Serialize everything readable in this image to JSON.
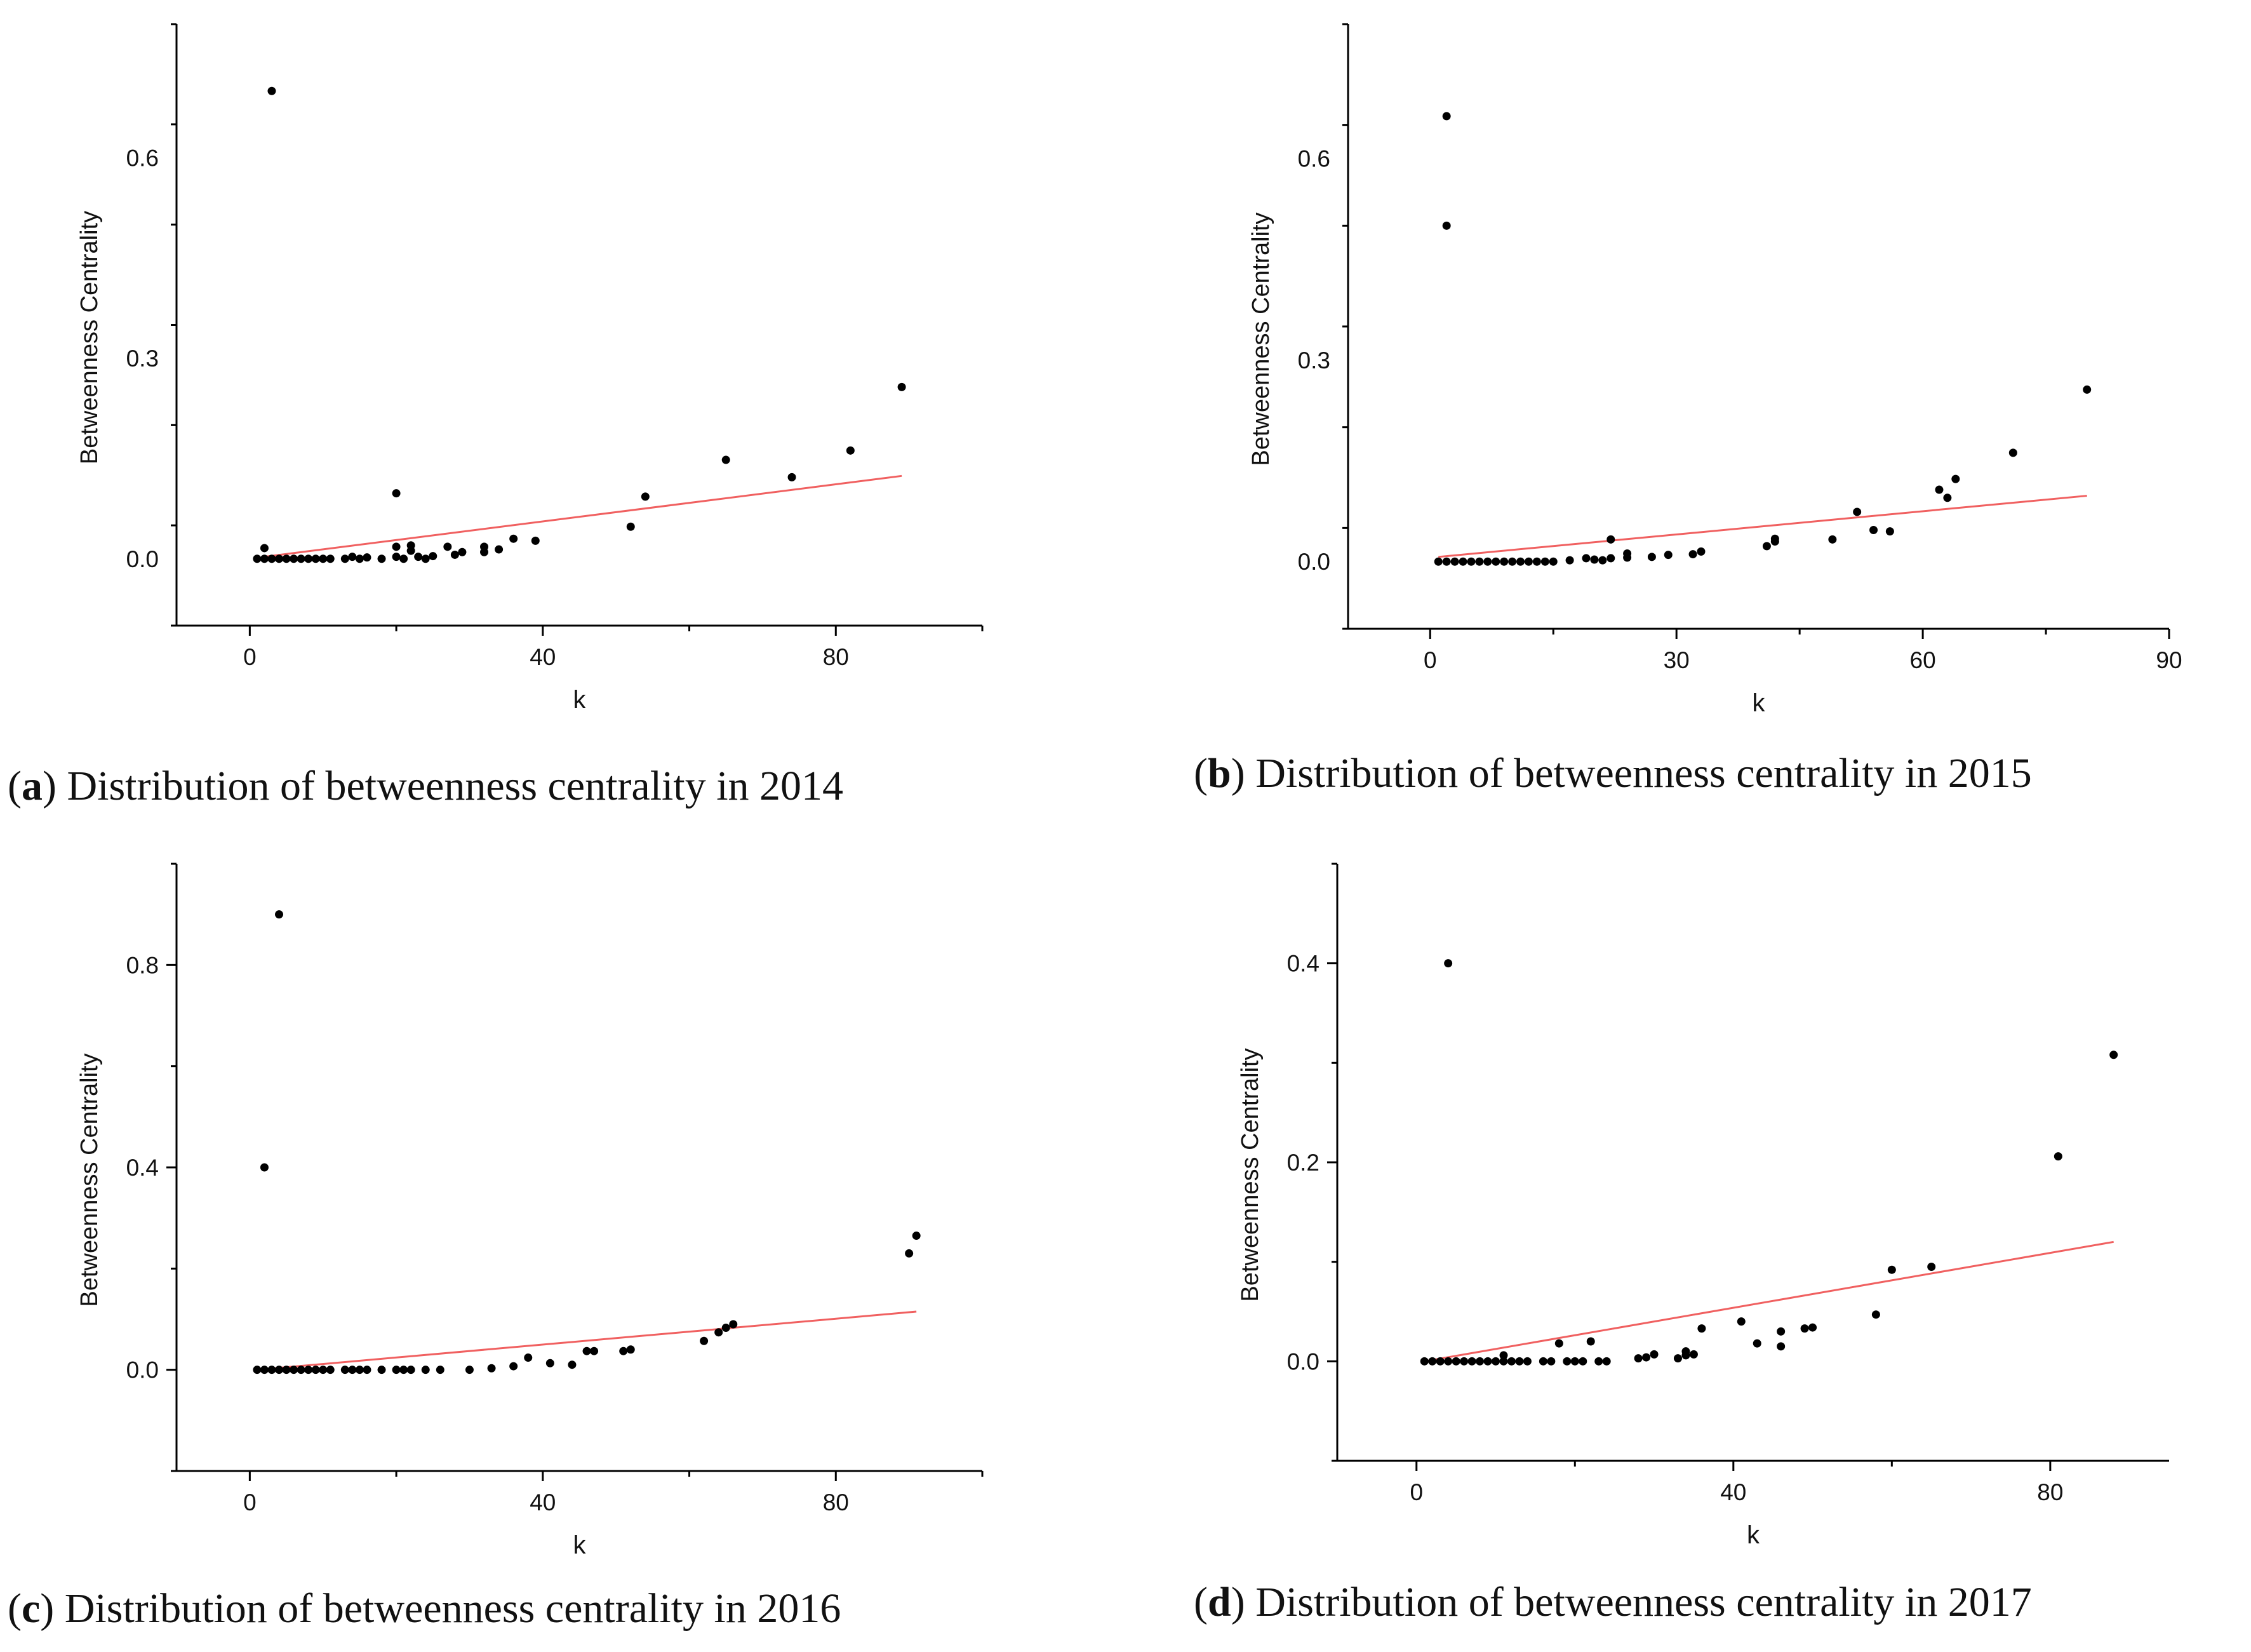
{
  "chart_data": [
    {
      "type": "scatter",
      "caption_letter": "a",
      "caption_text": "Distribution of betweenness centrality in 2014",
      "xlabel": "k",
      "ylabel": "Betweenness Centrality",
      "xlim": [
        -10,
        100
      ],
      "ylim": [
        -0.1,
        0.8
      ],
      "xticks": [
        0,
        40,
        80
      ],
      "yticks": [
        0.0,
        0.3,
        0.6
      ],
      "xtick_labels": [
        "0",
        "40",
        "80"
      ],
      "ytick_labels": [
        "0.0",
        "0.3",
        "0.6"
      ],
      "grid": false,
      "point_color": "#000000",
      "fit_color": "#f06060",
      "fit_line": {
        "x": [
          2,
          89
        ],
        "y": [
          0.003,
          0.124
        ]
      },
      "points": [
        [
          1,
          0
        ],
        [
          2,
          0
        ],
        [
          2,
          0.016
        ],
        [
          3,
          0
        ],
        [
          3,
          0.7
        ],
        [
          4,
          0
        ],
        [
          5,
          0
        ],
        [
          6,
          0
        ],
        [
          7,
          0
        ],
        [
          8,
          0
        ],
        [
          9,
          0
        ],
        [
          10,
          0
        ],
        [
          11,
          0
        ],
        [
          13,
          0
        ],
        [
          14,
          0.003
        ],
        [
          15,
          0
        ],
        [
          16,
          0.002
        ],
        [
          18,
          0
        ],
        [
          20,
          0.003
        ],
        [
          20,
          0.018
        ],
        [
          20,
          0.098
        ],
        [
          21,
          0
        ],
        [
          22,
          0.012
        ],
        [
          22,
          0.02
        ],
        [
          23,
          0.003
        ],
        [
          24,
          0
        ],
        [
          25,
          0.004
        ],
        [
          27,
          0.018
        ],
        [
          28,
          0.006
        ],
        [
          29,
          0.01
        ],
        [
          32,
          0.01
        ],
        [
          32,
          0.018
        ],
        [
          34,
          0.014
        ],
        [
          36,
          0.03
        ],
        [
          39,
          0.027
        ],
        [
          52,
          0.048
        ],
        [
          54,
          0.093
        ],
        [
          65,
          0.148
        ],
        [
          74,
          0.122
        ],
        [
          82,
          0.162
        ],
        [
          89,
          0.257
        ]
      ]
    },
    {
      "type": "scatter",
      "caption_letter": "b",
      "caption_text": "Distribution of betweenness centrality in 2015",
      "xlabel": "k",
      "ylabel": "Betweenness Centrality",
      "xlim": [
        -10,
        90
      ],
      "ylim": [
        -0.1,
        0.8
      ],
      "xticks": [
        0,
        30,
        60,
        90
      ],
      "yticks": [
        0.0,
        0.3,
        0.6
      ],
      "xtick_labels": [
        "0",
        "30",
        "60",
        "90"
      ],
      "ytick_labels": [
        "0.0",
        "0.3",
        "0.6"
      ],
      "grid": false,
      "point_color": "#000000",
      "fit_color": "#f06060",
      "fit_line": {
        "x": [
          1,
          80
        ],
        "y": [
          0.007,
          0.098
        ]
      },
      "points": [
        [
          1,
          0
        ],
        [
          2,
          0
        ],
        [
          2,
          0.663
        ],
        [
          2,
          0.5
        ],
        [
          3,
          0
        ],
        [
          4,
          0
        ],
        [
          5,
          0
        ],
        [
          6,
          0
        ],
        [
          7,
          0
        ],
        [
          8,
          0
        ],
        [
          9,
          0
        ],
        [
          10,
          0
        ],
        [
          11,
          0
        ],
        [
          12,
          0
        ],
        [
          13,
          0
        ],
        [
          14,
          0
        ],
        [
          15,
          0
        ],
        [
          17,
          0.002
        ],
        [
          19,
          0.005
        ],
        [
          20,
          0.003
        ],
        [
          21,
          0.002
        ],
        [
          22,
          0.033
        ],
        [
          22,
          0.005
        ],
        [
          24,
          0.006
        ],
        [
          24,
          0.012
        ],
        [
          27,
          0.007
        ],
        [
          29,
          0.01
        ],
        [
          32,
          0.011
        ],
        [
          33,
          0.015
        ],
        [
          41,
          0.023
        ],
        [
          42,
          0.03
        ],
        [
          42,
          0.034
        ],
        [
          49,
          0.033
        ],
        [
          52,
          0.074
        ],
        [
          54,
          0.047
        ],
        [
          56,
          0.045
        ],
        [
          62,
          0.107
        ],
        [
          63,
          0.095
        ],
        [
          64,
          0.123
        ],
        [
          71,
          0.162
        ],
        [
          80,
          0.256
        ]
      ]
    },
    {
      "type": "scatter",
      "caption_letter": "c",
      "caption_text": "Distribution of betweenness centrality in 2016",
      "xlabel": "k",
      "ylabel": "Betweenness Centrality",
      "xlim": [
        -10,
        100
      ],
      "ylim": [
        -0.2,
        1.0
      ],
      "xticks": [
        0,
        40,
        80
      ],
      "yticks": [
        0.0,
        0.4,
        0.8
      ],
      "xtick_labels": [
        "0",
        "40",
        "80"
      ],
      "ytick_labels": [
        "0.0",
        "0.4",
        "0.8"
      ],
      "grid": false,
      "point_color": "#000000",
      "fit_color": "#f06060",
      "fit_line": {
        "x": [
          1,
          91
        ],
        "y": [
          0.0,
          0.115
        ]
      },
      "points": [
        [
          1,
          0
        ],
        [
          2,
          0
        ],
        [
          2,
          0.4
        ],
        [
          3,
          0
        ],
        [
          4,
          0
        ],
        [
          4,
          0.9
        ],
        [
          5,
          0
        ],
        [
          6,
          0
        ],
        [
          7,
          0
        ],
        [
          8,
          0
        ],
        [
          9,
          0
        ],
        [
          10,
          0
        ],
        [
          11,
          0
        ],
        [
          13,
          0
        ],
        [
          14,
          0
        ],
        [
          15,
          0
        ],
        [
          16,
          0
        ],
        [
          18,
          0
        ],
        [
          20,
          0
        ],
        [
          21,
          0
        ],
        [
          22,
          0
        ],
        [
          24,
          0
        ],
        [
          26,
          0
        ],
        [
          30,
          0
        ],
        [
          33,
          0.003
        ],
        [
          36,
          0.007
        ],
        [
          38,
          0.024
        ],
        [
          41,
          0.013
        ],
        [
          44,
          0.01
        ],
        [
          46,
          0.037
        ],
        [
          47,
          0.037
        ],
        [
          51,
          0.037
        ],
        [
          52,
          0.04
        ],
        [
          62,
          0.057
        ],
        [
          64,
          0.074
        ],
        [
          65,
          0.083
        ],
        [
          66,
          0.09
        ],
        [
          90,
          0.23
        ],
        [
          91,
          0.265
        ]
      ]
    },
    {
      "type": "scatter",
      "caption_letter": "d",
      "caption_text": "Distribution of betweenness centrality in 2017",
      "xlabel": "k",
      "ylabel": "Betweenness Centrality",
      "xlim": [
        -10,
        95
      ],
      "ylim": [
        -0.1,
        0.5
      ],
      "xticks": [
        0,
        40,
        80
      ],
      "yticks": [
        0.0,
        0.2,
        0.4
      ],
      "xtick_labels": [
        "0",
        "40",
        "80"
      ],
      "ytick_labels": [
        "0.0",
        "0.2",
        "0.4"
      ],
      "grid": false,
      "point_color": "#000000",
      "fit_color": "#f06060",
      "fit_line": {
        "x": [
          1,
          88
        ],
        "y": [
          0.0,
          0.12
        ]
      },
      "points": [
        [
          1,
          0
        ],
        [
          2,
          0
        ],
        [
          3,
          0
        ],
        [
          4,
          0
        ],
        [
          4,
          0.4
        ],
        [
          5,
          0
        ],
        [
          6,
          0
        ],
        [
          7,
          0
        ],
        [
          8,
          0
        ],
        [
          9,
          0
        ],
        [
          10,
          0
        ],
        [
          11,
          0
        ],
        [
          11,
          0.006
        ],
        [
          12,
          0
        ],
        [
          13,
          0
        ],
        [
          14,
          0
        ],
        [
          16,
          0
        ],
        [
          17,
          0
        ],
        [
          18,
          0.018
        ],
        [
          19,
          0
        ],
        [
          20,
          0
        ],
        [
          21,
          0
        ],
        [
          22,
          0.02
        ],
        [
          23,
          0
        ],
        [
          24,
          0
        ],
        [
          28,
          0.003
        ],
        [
          29,
          0.004
        ],
        [
          30,
          0.007
        ],
        [
          33,
          0.003
        ],
        [
          34,
          0.006
        ],
        [
          34,
          0.01
        ],
        [
          35,
          0.007
        ],
        [
          36,
          0.033
        ],
        [
          41,
          0.04
        ],
        [
          43,
          0.018
        ],
        [
          46,
          0.015
        ],
        [
          46,
          0.03
        ],
        [
          49,
          0.033
        ],
        [
          50,
          0.034
        ],
        [
          58,
          0.047
        ],
        [
          60,
          0.092
        ],
        [
          65,
          0.095
        ],
        [
          81,
          0.206
        ],
        [
          88,
          0.308
        ]
      ]
    }
  ]
}
